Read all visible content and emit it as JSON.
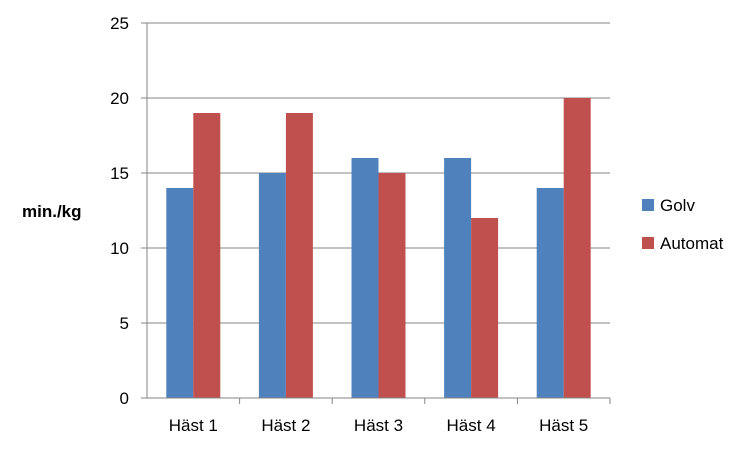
{
  "chart_data": {
    "type": "bar",
    "categories": [
      "Häst 1",
      "Häst 2",
      "Häst 3",
      "Häst 4",
      "Häst 5"
    ],
    "series": [
      {
        "name": "Golv",
        "values": [
          14,
          15,
          16,
          16,
          14
        ],
        "color": "#4F81BD"
      },
      {
        "name": "Automat",
        "values": [
          19,
          19,
          15,
          12,
          20
        ],
        "color": "#C0504D"
      }
    ],
    "ylabel": "min./kg",
    "ylim": [
      0,
      25
    ],
    "yticks": [
      "0",
      "5",
      "10",
      "15",
      "20",
      "25"
    ],
    "grid": true,
    "legend_position": "right"
  }
}
